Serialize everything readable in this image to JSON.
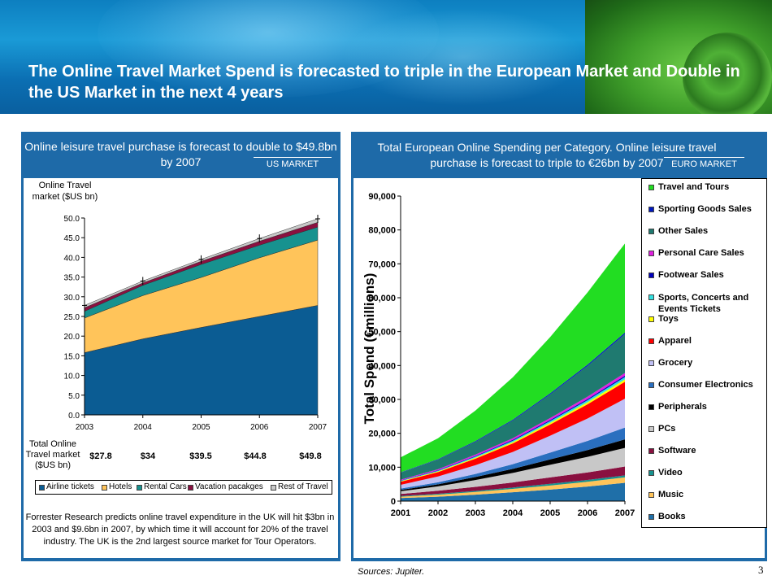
{
  "title": "The Online Travel Market Spend is forecasted to triple in the European Market and Double in the US Market in the next 4 years",
  "left_panel": {
    "heading": "Online leisure travel purchase is forecast to double to $49.8bn by 2007",
    "tag": "US MARKET",
    "ytitle": "Online Travel market ($US bn)",
    "totals_label": "Total Online Travel market ($US bn)",
    "totals": [
      "$27.8",
      "$34",
      "$39.5",
      "$44.8",
      "$49.8"
    ],
    "note": "Forrester Research predicts online travel expenditure in the UK will hit $3bn in 2003 and $9.6bn in 2007, by which time it will account for 20% of the travel industry. The UK is the 2nd largest source market for Tour Operators."
  },
  "right_panel": {
    "heading": "Total European Online Spending per Category. Online leisure travel purchase is forecast to triple to €26bn by 2007",
    "tag": "EURO MARKET"
  },
  "sources": "Sources: Jupiter.",
  "page_number": "3",
  "colors": {
    "header_blue": "#1e6aa8",
    "airline": "#0b5c93",
    "hotels": "#ffc45a",
    "rental": "#17928f",
    "vacation": "#8a1040",
    "rest": "#c8c8c8"
  },
  "chart_data": [
    {
      "type": "area",
      "stacked": true,
      "title": "Online Travel market ($US bn)",
      "categories": [
        "2003",
        "2004",
        "2005",
        "2006",
        "2007"
      ],
      "ylim": [
        0,
        50
      ],
      "yticks": [
        "0.0",
        "5.0",
        "10.0",
        "15.0",
        "20.0",
        "25.0",
        "30.0",
        "35.0",
        "40.0",
        "45.0",
        "50.0"
      ],
      "series": [
        {
          "name": "Airline tickets",
          "color": "#0b5c93",
          "values": [
            15.8,
            19.3,
            22.2,
            25.0,
            27.8
          ]
        },
        {
          "name": "Hotels",
          "color": "#ffc45a",
          "values": [
            8.8,
            11.0,
            12.7,
            14.9,
            16.6
          ]
        },
        {
          "name": "Rental Cars",
          "color": "#17928f",
          "values": [
            1.7,
            2.6,
            3.3,
            3.2,
            3.3
          ]
        },
        {
          "name": "Vacation pacakges",
          "color": "#8a1040",
          "values": [
            0.9,
            0.6,
            0.8,
            1.0,
            1.2
          ]
        },
        {
          "name": "Rest of Travel",
          "color": "#c8c8c8",
          "values": [
            0.6,
            0.5,
            0.5,
            0.7,
            0.9
          ]
        }
      ],
      "legend": "bottom"
    },
    {
      "type": "area",
      "stacked": true,
      "categories": [
        "2001",
        "2002",
        "2003",
        "2004",
        "2005",
        "2006",
        "2007"
      ],
      "ylabel": "Total Spend (€millions)",
      "ylim": [
        0,
        90000
      ],
      "yticks": [
        "0",
        "10,000",
        "20,000",
        "30,000",
        "40,000",
        "50,000",
        "60,000",
        "70,000",
        "80,000",
        "90,000"
      ],
      "series": [
        {
          "name": "Books",
          "color": "#1f6fa8",
          "values": [
            900,
            1300,
            1900,
            2600,
            3400,
            4300,
            5400
          ]
        },
        {
          "name": "Music",
          "color": "#ffc45a",
          "values": [
            400,
            600,
            800,
            1000,
            1200,
            1400,
            1600
          ]
        },
        {
          "name": "Video",
          "color": "#17928f",
          "values": [
            200,
            250,
            300,
            400,
            500,
            550,
            600
          ]
        },
        {
          "name": "Software",
          "color": "#8a1040",
          "values": [
            600,
            900,
            1200,
            1500,
            1900,
            2200,
            2600
          ]
        },
        {
          "name": "PCs",
          "color": "#c8c8c8",
          "values": [
            800,
            1300,
            2000,
            2800,
            3700,
            4600,
            5500
          ]
        },
        {
          "name": "Peripherals",
          "color": "#000000",
          "values": [
            400,
            600,
            900,
            1200,
            1600,
            2000,
            2500
          ]
        },
        {
          "name": "Consumer Electronics",
          "color": "#2a6fbf",
          "values": [
            400,
            600,
            900,
            1400,
            2000,
            2700,
            3500
          ]
        },
        {
          "name": "Grocery",
          "color": "#c0c0f5",
          "values": [
            1100,
            1700,
            2600,
            3600,
            5000,
            6600,
            8500
          ]
        },
        {
          "name": "Apparel",
          "color": "#ff0000",
          "values": [
            900,
            1300,
            1900,
            2500,
            3300,
            4200,
            5000
          ]
        },
        {
          "name": "Toys",
          "color": "#ffff00",
          "values": [
            150,
            200,
            300,
            400,
            500,
            600,
            700
          ]
        },
        {
          "name": "Sports, Concerts and Events Tickets",
          "color": "#33e0e0",
          "values": [
            150,
            200,
            300,
            400,
            500,
            600,
            700
          ]
        },
        {
          "name": "Footwear Sales",
          "color": "#0000bb",
          "values": [
            100,
            150,
            200,
            250,
            300,
            350,
            400
          ]
        },
        {
          "name": "Personal Care Sales",
          "color": "#e020e0",
          "values": [
            200,
            300,
            400,
            500,
            600,
            700,
            800
          ]
        },
        {
          "name": "Other Sales",
          "color": "#1f7a70",
          "values": [
            2100,
            2800,
            3800,
            5200,
            7000,
            9100,
            11500
          ]
        },
        {
          "name": "Sporting Goods Sales",
          "color": "#0018c0",
          "values": [
            100,
            150,
            200,
            250,
            300,
            350,
            400
          ]
        },
        {
          "name": "Travel and Tours",
          "color": "#22dd22",
          "values": [
            4400,
            6200,
            9000,
            12500,
            16600,
            21300,
            26300
          ]
        }
      ],
      "legend": "right"
    }
  ]
}
